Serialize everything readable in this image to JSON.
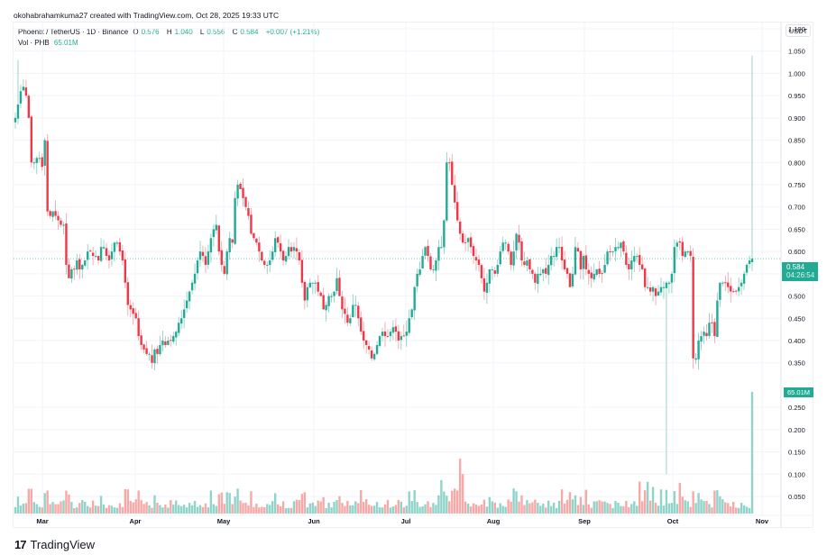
{
  "header": {
    "credit": "okohabrahamkuma27 created with TradingView.com, Oct 28, 2025 19:33 UTC"
  },
  "legend": {
    "symbol": "Phoenix / TetherUS · 1D · Binance",
    "open_label": "O",
    "open": "0.576",
    "high_label": "H",
    "high": "1.040",
    "low_label": "L",
    "low": "0.556",
    "close_label": "C",
    "close": "0.584",
    "change": "+0.007 (+1.21%)",
    "vol_label": "Vol · PHB",
    "vol_value": "65.01M"
  },
  "axis": {
    "unit": "USDT",
    "price_ticks": [
      "1.100",
      "1.050",
      "1.000",
      "0.950",
      "0.900",
      "0.850",
      "0.800",
      "0.750",
      "0.700",
      "0.650",
      "0.600",
      "0.550",
      "0.500",
      "0.450",
      "0.400",
      "0.350",
      "0.250",
      "0.200",
      "0.150",
      "0.100",
      "0.050"
    ],
    "months": [
      "Mar",
      "Apr",
      "May",
      "Jun",
      "Jul",
      "Aug",
      "Sep",
      "Oct",
      "Nov"
    ]
  },
  "price_tag": {
    "price": "0.584",
    "countdown": "04:26:54"
  },
  "volume_tag": "65.01M",
  "footer": {
    "brand": "TradingView",
    "logo_mark": "17"
  },
  "colors": {
    "up": "#22ab94",
    "down": "#f23645",
    "vol_up": "#90d3c9",
    "vol_down": "#f7a9a7",
    "grid": "#f0f3fa"
  },
  "chart_data": {
    "type": "candlestick",
    "title": "Phoenix / TetherUS · 1D · Binance",
    "ylabel": "USDT",
    "ylim": [
      0.0,
      1.1
    ],
    "x_tick_labels": [
      "Mar",
      "Apr",
      "May",
      "Jun",
      "Jul",
      "Aug",
      "Sep",
      "Oct",
      "Nov"
    ],
    "last": {
      "open": 0.576,
      "high": 1.04,
      "low": 0.556,
      "close": 0.584,
      "change": 0.007,
      "change_pct": 1.21,
      "volume": "65.01M"
    },
    "closes": [
      0.9,
      0.93,
      0.96,
      0.97,
      0.95,
      0.9,
      0.8,
      0.8,
      0.81,
      0.81,
      0.79,
      0.85,
      0.69,
      0.68,
      0.69,
      0.68,
      0.67,
      0.66,
      0.66,
      0.57,
      0.54,
      0.56,
      0.56,
      0.58,
      0.56,
      0.57,
      0.58,
      0.6,
      0.6,
      0.59,
      0.59,
      0.58,
      0.61,
      0.61,
      0.59,
      0.58,
      0.6,
      0.62,
      0.62,
      0.6,
      0.58,
      0.53,
      0.48,
      0.47,
      0.46,
      0.45,
      0.41,
      0.39,
      0.38,
      0.37,
      0.37,
      0.35,
      0.38,
      0.37,
      0.39,
      0.4,
      0.39,
      0.4,
      0.4,
      0.41,
      0.42,
      0.44,
      0.45,
      0.47,
      0.49,
      0.51,
      0.53,
      0.55,
      0.58,
      0.6,
      0.59,
      0.57,
      0.6,
      0.63,
      0.65,
      0.66,
      0.6,
      0.57,
      0.55,
      0.6,
      0.63,
      0.62,
      0.72,
      0.75,
      0.74,
      0.72,
      0.7,
      0.68,
      0.64,
      0.63,
      0.62,
      0.6,
      0.58,
      0.57,
      0.57,
      0.58,
      0.6,
      0.63,
      0.62,
      0.6,
      0.58,
      0.59,
      0.61,
      0.6,
      0.61,
      0.6,
      0.58,
      0.53,
      0.49,
      0.52,
      0.53,
      0.53,
      0.53,
      0.51,
      0.5,
      0.47,
      0.48,
      0.5,
      0.5,
      0.51,
      0.54,
      0.5,
      0.47,
      0.46,
      0.44,
      0.45,
      0.48,
      0.48,
      0.45,
      0.42,
      0.4,
      0.39,
      0.38,
      0.36,
      0.37,
      0.39,
      0.41,
      0.42,
      0.41,
      0.41,
      0.42,
      0.43,
      0.42,
      0.4,
      0.41,
      0.41,
      0.42,
      0.45,
      0.47,
      0.52,
      0.55,
      0.56,
      0.59,
      0.61,
      0.59,
      0.56,
      0.56,
      0.58,
      0.61,
      0.61,
      0.67,
      0.8,
      0.8,
      0.75,
      0.71,
      0.67,
      0.64,
      0.62,
      0.62,
      0.63,
      0.61,
      0.59,
      0.58,
      0.57,
      0.54,
      0.51,
      0.53,
      0.56,
      0.56,
      0.55,
      0.57,
      0.6,
      0.62,
      0.62,
      0.6,
      0.57,
      0.6,
      0.64,
      0.62,
      0.58,
      0.57,
      0.58,
      0.56,
      0.55,
      0.53,
      0.55,
      0.55,
      0.56,
      0.55,
      0.57,
      0.59,
      0.59,
      0.61,
      0.61,
      0.58,
      0.56,
      0.55,
      0.52,
      0.55,
      0.61,
      0.6,
      0.56,
      0.59,
      0.56,
      0.55,
      0.54,
      0.55,
      0.56,
      0.55,
      0.55,
      0.57,
      0.6,
      0.6,
      0.6,
      0.61,
      0.61,
      0.62,
      0.6,
      0.57,
      0.56,
      0.58,
      0.59,
      0.59,
      0.57,
      0.56,
      0.52,
      0.52,
      0.51,
      0.52,
      0.5,
      0.51,
      0.52,
      0.52,
      0.53,
      0.53,
      0.55,
      0.61,
      0.62,
      0.62,
      0.59,
      0.6,
      0.6,
      0.59,
      0.36,
      0.36,
      0.4,
      0.41,
      0.42,
      0.41,
      0.44,
      0.44,
      0.41,
      0.49,
      0.53,
      0.53,
      0.53,
      0.52,
      0.51,
      0.51,
      0.51,
      0.52,
      0.53,
      0.55,
      0.57,
      0.58,
      0.584
    ],
    "notes": "Daily candles ~Feb 17 to Oct 28 2025; peak ~1.03 mid-Feb, low ~0.34 early Apr, spike high 1.040 on last candle; volume spike on last day 65.01M."
  }
}
